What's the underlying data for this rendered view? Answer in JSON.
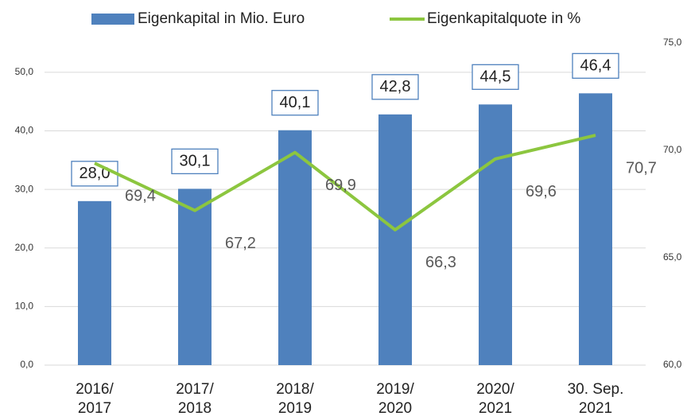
{
  "chart_data": {
    "type": "bar-line",
    "categories": [
      "2016/\n2017",
      "2017/\n2018",
      "2018/\n2019",
      "2019/\n2020",
      "2020/\n2021",
      "30. Sep.\n2021"
    ],
    "series": [
      {
        "name": "Eigenkapital in Mio. Euro",
        "type": "bar",
        "color": "#4f81bd",
        "values": [
          28.0,
          30.1,
          40.1,
          42.8,
          44.5,
          46.4
        ],
        "value_labels": [
          "28,0",
          "30,1",
          "40,1",
          "42,8",
          "44,5",
          "46,4"
        ]
      },
      {
        "name": "Eigenkapitalquote in %",
        "type": "line",
        "axis": "y2",
        "color": "#8cc63f",
        "values": [
          69.4,
          67.2,
          69.9,
          66.3,
          69.6,
          70.7
        ],
        "value_labels": [
          "69,4",
          "67,2",
          "69,9",
          "66,3",
          "69,6",
          "70,7"
        ]
      }
    ],
    "ylim": [
      0,
      55
    ],
    "yticks": [
      {
        "value": 0,
        "label": "0,0"
      },
      {
        "value": 10,
        "label": "10,0"
      },
      {
        "value": 20,
        "label": "20,0"
      },
      {
        "value": 30,
        "label": "30,0"
      },
      {
        "value": 40,
        "label": "40,0"
      },
      {
        "value": 50,
        "label": "50,0"
      }
    ],
    "y2lim": [
      60,
      75
    ],
    "y2ticks": [
      {
        "value": 60,
        "label": "60,0"
      },
      {
        "value": 65,
        "label": "65,0"
      },
      {
        "value": 70,
        "label": "70,0"
      },
      {
        "value": 75,
        "label": "75,0"
      }
    ],
    "grid": true
  }
}
